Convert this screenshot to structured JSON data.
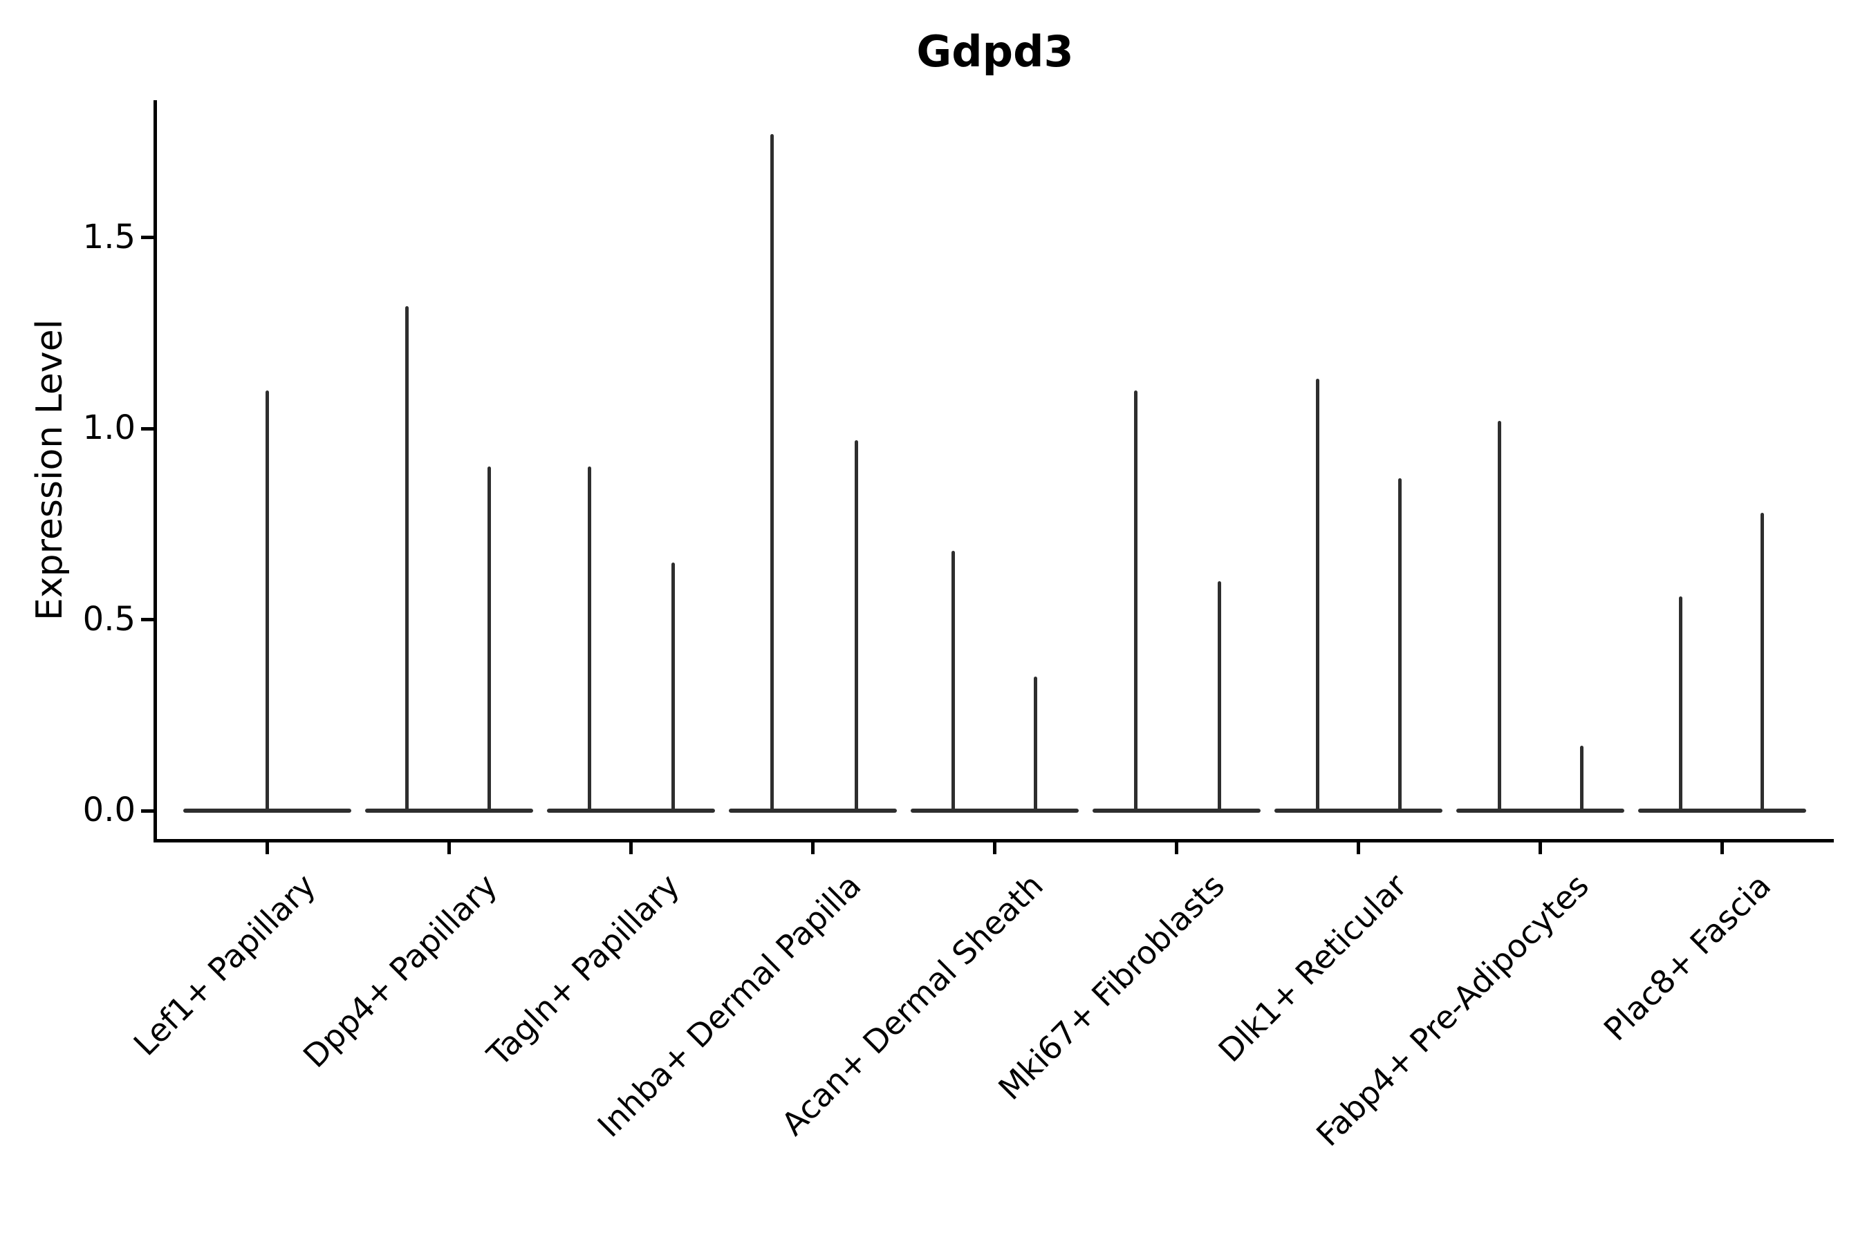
{
  "figure": {
    "title": "Gdpd3",
    "ylabel": "Expression Level"
  },
  "chart_data": {
    "type": "violin",
    "title": "Gdpd3",
    "xlabel": "",
    "ylabel": "Expression Level",
    "ylim": [
      -0.08,
      1.86
    ],
    "yticks": [
      0.0,
      0.5,
      1.0,
      1.5
    ],
    "ytick_labels": [
      "0.0",
      "0.5",
      "1.0",
      "1.5"
    ],
    "grid": false,
    "legend": null,
    "violin_color": "#2e2e2e",
    "categories": [
      "Lef1+ Papillary",
      "Dpp4+ Papillary",
      "Tagln+ Papillary",
      "Inhba+ Dermal Papilla",
      "Acan+ Dermal Sheath",
      "Mki67+ Fibroblasts",
      "Dlk1+ Reticular",
      "Fabp4+ Pre-Adipocytes",
      "Plac8+ Fascia"
    ],
    "baseline_value": 0.0,
    "description": "Expression mass concentrated at 0 in every group; each violin is a wide flat base at 0 with a thin density spike rising to the group's maximum expression value. Categories 2-9 contain two side-by-side sub-violin spikes; category 1 has a single centered spike.",
    "violins": [
      {
        "category": "Lef1+ Papillary",
        "spikes": [
          {
            "pos": "center",
            "dx": 0,
            "max": 1.1
          }
        ]
      },
      {
        "category": "Dpp4+ Papillary",
        "spikes": [
          {
            "pos": "left",
            "dx": -61,
            "max": 1.32
          },
          {
            "pos": "right",
            "dx": 58,
            "max": 0.9
          }
        ]
      },
      {
        "category": "Tagln+ Papillary",
        "spikes": [
          {
            "pos": "left",
            "dx": -60,
            "max": 0.9
          },
          {
            "pos": "right",
            "dx": 61,
            "max": 0.65
          }
        ]
      },
      {
        "category": "Inhba+ Dermal Papilla",
        "spikes": [
          {
            "pos": "left",
            "dx": -59,
            "max": 1.77
          },
          {
            "pos": "right",
            "dx": 63,
            "max": 0.97
          }
        ]
      },
      {
        "category": "Acan+ Dermal Sheath",
        "spikes": [
          {
            "pos": "left",
            "dx": -60,
            "max": 0.68
          },
          {
            "pos": "right",
            "dx": 59,
            "max": 0.35
          }
        ]
      },
      {
        "category": "Mki67+ Fibroblasts",
        "spikes": [
          {
            "pos": "left",
            "dx": -59,
            "max": 1.1
          },
          {
            "pos": "right",
            "dx": 62,
            "max": 0.6
          }
        ]
      },
      {
        "category": "Dlk1+ Reticular",
        "spikes": [
          {
            "pos": "left",
            "dx": -59,
            "max": 1.13
          },
          {
            "pos": "right",
            "dx": 60,
            "max": 0.87
          }
        ]
      },
      {
        "category": "Fabp4+ Pre-Adipocytes",
        "spikes": [
          {
            "pos": "left",
            "dx": -59,
            "max": 1.02
          },
          {
            "pos": "right",
            "dx": 60,
            "max": 0.17
          }
        ]
      },
      {
        "category": "Plac8+ Fascia",
        "spikes": [
          {
            "pos": "left",
            "dx": -60,
            "max": 0.56
          },
          {
            "pos": "right",
            "dx": 58,
            "max": 0.78
          }
        ]
      }
    ]
  }
}
